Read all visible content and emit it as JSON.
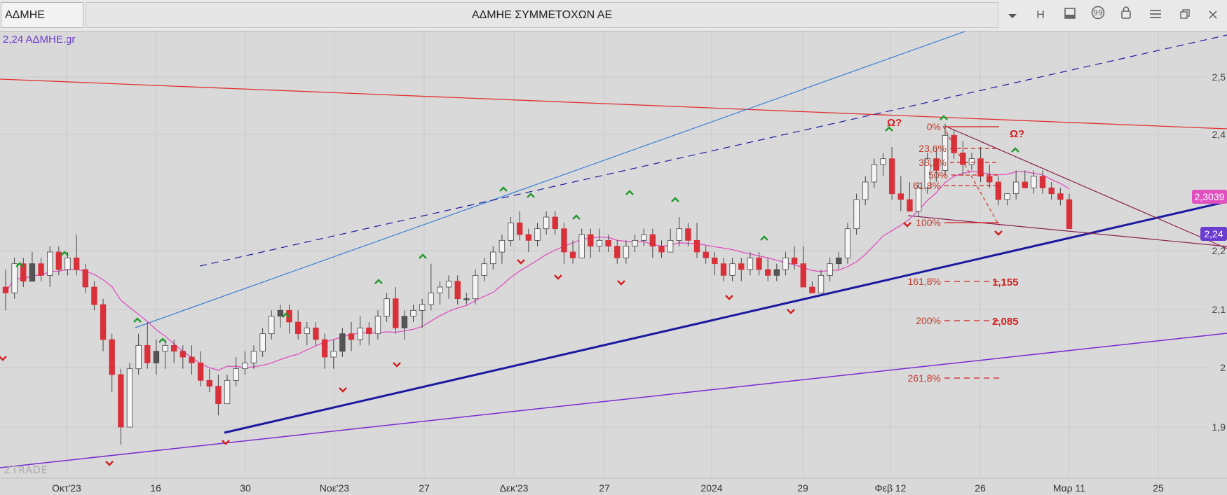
{
  "header": {
    "symbol": "ΑΔΜΗΕ",
    "company": "ΑΔΜΗΕ ΣΥΜΜΕΤΟΧΩΝ ΑΕ",
    "interval": "H"
  },
  "legend": "2,24 ΑΔΜΗΕ.gr",
  "watermark": "ZTRADE",
  "colors": {
    "up": "#f5f5f5",
    "up_dark": "#555555",
    "down": "#d9313a",
    "ma": "#e050c0",
    "trend_blue": "#1a1aa0",
    "line_light_blue": "#3a7fd5",
    "line_red": "#e03030",
    "line_purple": "#7a2ad0",
    "fib": "#d21f1f"
  },
  "chart_data": {
    "type": "candlestick",
    "y_range": [
      1.86,
      2.58
    ],
    "price_labels": [
      "2,5",
      "2,4",
      "2,2",
      "2,1",
      "2",
      "1,9"
    ],
    "x_labels": [
      "Οκτ'23",
      "16",
      "30",
      "Νοε'23",
      "27",
      "Δεκ'23",
      "27",
      "2024",
      "29",
      "Φεβ 12",
      "26",
      "Μαρ 11",
      "25"
    ],
    "current_price": "2,24",
    "ma_value": "2,3039",
    "fib_levels": [
      {
        "label": "0%"
      },
      {
        "label": "23,6%"
      },
      {
        "label": "38,2%"
      },
      {
        "label": "50%"
      },
      {
        "label": "61,8%"
      },
      {
        "label": "100%"
      },
      {
        "label": "161,8%",
        "value": "1,155"
      },
      {
        "label": "200%",
        "value": "2,085"
      },
      {
        "label": "261,8%"
      }
    ],
    "annotations": [
      "Ω?",
      "Ω?"
    ],
    "candles": [
      [
        2.14,
        2.17,
        2.1,
        2.13
      ],
      [
        2.13,
        2.19,
        2.12,
        2.18
      ],
      [
        2.18,
        2.19,
        2.14,
        2.15
      ],
      [
        2.15,
        2.2,
        2.15,
        2.18
      ],
      [
        2.18,
        2.19,
        2.15,
        2.16
      ],
      [
        2.16,
        2.21,
        2.14,
        2.2
      ],
      [
        2.2,
        2.21,
        2.16,
        2.17
      ],
      [
        2.17,
        2.2,
        2.16,
        2.19
      ],
      [
        2.19,
        2.23,
        2.16,
        2.17
      ],
      [
        2.17,
        2.18,
        2.13,
        2.14
      ],
      [
        2.14,
        2.15,
        2.1,
        2.11
      ],
      [
        2.11,
        2.12,
        2.03,
        2.05
      ],
      [
        2.05,
        2.06,
        1.96,
        1.99
      ],
      [
        1.99,
        2.0,
        1.87,
        1.9
      ],
      [
        1.9,
        2.01,
        1.9,
        2.0
      ],
      [
        2.0,
        2.06,
        1.99,
        2.04
      ],
      [
        2.04,
        2.08,
        2.0,
        2.01
      ],
      [
        2.01,
        2.05,
        1.99,
        2.03
      ],
      [
        2.03,
        2.05,
        2.0,
        2.04
      ],
      [
        2.04,
        2.05,
        2.01,
        2.03
      ],
      [
        2.03,
        2.04,
        2.0,
        2.02
      ],
      [
        2.02,
        2.04,
        1.99,
        2.01
      ],
      [
        2.01,
        2.03,
        1.97,
        1.98
      ],
      [
        1.98,
        2.0,
        1.96,
        1.97
      ],
      [
        1.97,
        1.99,
        1.92,
        1.94
      ],
      [
        1.94,
        1.99,
        1.94,
        1.98
      ],
      [
        1.98,
        2.02,
        1.97,
        2.0
      ],
      [
        2.0,
        2.03,
        1.99,
        2.01
      ],
      [
        2.01,
        2.04,
        2.0,
        2.03
      ],
      [
        2.03,
        2.07,
        2.02,
        2.06
      ],
      [
        2.06,
        2.1,
        2.05,
        2.09
      ],
      [
        2.09,
        2.11,
        2.07,
        2.1
      ],
      [
        2.1,
        2.11,
        2.06,
        2.08
      ],
      [
        2.08,
        2.1,
        2.05,
        2.06
      ],
      [
        2.06,
        2.08,
        2.04,
        2.07
      ],
      [
        2.07,
        2.08,
        2.04,
        2.05
      ],
      [
        2.05,
        2.06,
        2.0,
        2.02
      ],
      [
        2.02,
        2.05,
        2.0,
        2.03
      ],
      [
        2.03,
        2.07,
        2.02,
        2.06
      ],
      [
        2.06,
        2.08,
        2.03,
        2.05
      ],
      [
        2.05,
        2.09,
        2.04,
        2.07
      ],
      [
        2.07,
        2.08,
        2.04,
        2.06
      ],
      [
        2.06,
        2.1,
        2.05,
        2.09
      ],
      [
        2.09,
        2.13,
        2.08,
        2.12
      ],
      [
        2.12,
        2.14,
        2.06,
        2.07
      ],
      [
        2.07,
        2.1,
        2.05,
        2.09
      ],
      [
        2.09,
        2.11,
        2.08,
        2.1
      ],
      [
        2.1,
        2.12,
        2.07,
        2.11
      ],
      [
        2.11,
        2.18,
        2.1,
        2.13
      ],
      [
        2.13,
        2.15,
        2.11,
        2.14
      ],
      [
        2.14,
        2.16,
        2.12,
        2.15
      ],
      [
        2.15,
        2.16,
        2.11,
        2.12
      ],
      [
        2.12,
        2.13,
        2.11,
        2.12
      ],
      [
        2.12,
        2.17,
        2.11,
        2.16
      ],
      [
        2.16,
        2.19,
        2.15,
        2.18
      ],
      [
        2.18,
        2.21,
        2.17,
        2.2
      ],
      [
        2.2,
        2.23,
        2.18,
        2.22
      ],
      [
        2.22,
        2.26,
        2.21,
        2.25
      ],
      [
        2.25,
        2.27,
        2.22,
        2.23
      ],
      [
        2.23,
        2.24,
        2.2,
        2.22
      ],
      [
        2.22,
        2.25,
        2.21,
        2.24
      ],
      [
        2.24,
        2.27,
        2.23,
        2.26
      ],
      [
        2.26,
        2.27,
        2.23,
        2.24
      ],
      [
        2.24,
        2.25,
        2.18,
        2.2
      ],
      [
        2.2,
        2.22,
        2.18,
        2.19
      ],
      [
        2.19,
        2.24,
        2.19,
        2.23
      ],
      [
        2.23,
        2.24,
        2.19,
        2.21
      ],
      [
        2.21,
        2.24,
        2.2,
        2.22
      ],
      [
        2.22,
        2.23,
        2.2,
        2.21
      ],
      [
        2.21,
        2.22,
        2.18,
        2.19
      ],
      [
        2.19,
        2.22,
        2.18,
        2.21
      ],
      [
        2.21,
        2.23,
        2.2,
        2.22
      ],
      [
        2.22,
        2.24,
        2.21,
        2.23
      ],
      [
        2.23,
        2.24,
        2.19,
        2.21
      ],
      [
        2.21,
        2.22,
        2.19,
        2.2
      ],
      [
        2.2,
        2.24,
        2.2,
        2.22
      ],
      [
        2.22,
        2.26,
        2.21,
        2.24
      ],
      [
        2.24,
        2.25,
        2.21,
        2.22
      ],
      [
        2.22,
        2.25,
        2.19,
        2.2
      ],
      [
        2.2,
        2.21,
        2.18,
        2.19
      ],
      [
        2.19,
        2.2,
        2.16,
        2.18
      ],
      [
        2.18,
        2.19,
        2.15,
        2.16
      ],
      [
        2.16,
        2.19,
        2.15,
        2.18
      ],
      [
        2.18,
        2.19,
        2.15,
        2.17
      ],
      [
        2.17,
        2.2,
        2.16,
        2.19
      ],
      [
        2.19,
        2.2,
        2.16,
        2.17
      ],
      [
        2.17,
        2.19,
        2.15,
        2.16
      ],
      [
        2.16,
        2.18,
        2.15,
        2.17
      ],
      [
        2.17,
        2.2,
        2.16,
        2.19
      ],
      [
        2.19,
        2.21,
        2.17,
        2.18
      ],
      [
        2.18,
        2.21,
        2.14,
        2.14
      ],
      [
        2.14,
        2.15,
        2.13,
        2.13
      ],
      [
        2.13,
        2.17,
        2.13,
        2.16
      ],
      [
        2.16,
        2.19,
        2.15,
        2.18
      ],
      [
        2.18,
        2.2,
        2.17,
        2.19
      ],
      [
        2.19,
        2.25,
        2.18,
        2.24
      ],
      [
        2.24,
        2.3,
        2.23,
        2.29
      ],
      [
        2.29,
        2.33,
        2.28,
        2.32
      ],
      [
        2.32,
        2.36,
        2.31,
        2.35
      ],
      [
        2.35,
        2.37,
        2.33,
        2.36
      ],
      [
        2.36,
        2.38,
        2.29,
        2.3
      ],
      [
        2.3,
        2.33,
        2.27,
        2.29
      ],
      [
        2.29,
        2.32,
        2.27,
        2.27
      ],
      [
        2.27,
        2.32,
        2.26,
        2.31
      ],
      [
        2.31,
        2.37,
        2.3,
        2.36
      ],
      [
        2.36,
        2.38,
        2.32,
        2.34
      ],
      [
        2.34,
        2.42,
        2.33,
        2.4
      ],
      [
        2.4,
        2.41,
        2.36,
        2.37
      ],
      [
        2.37,
        2.39,
        2.33,
        2.35
      ],
      [
        2.35,
        2.37,
        2.34,
        2.36
      ],
      [
        2.36,
        2.38,
        2.32,
        2.33
      ],
      [
        2.33,
        2.35,
        2.31,
        2.32
      ],
      [
        2.32,
        2.33,
        2.28,
        2.29
      ],
      [
        2.29,
        2.3,
        2.28,
        2.3
      ],
      [
        2.3,
        2.34,
        2.29,
        2.32
      ],
      [
        2.32,
        2.34,
        2.31,
        2.31
      ],
      [
        2.31,
        2.34,
        2.3,
        2.33
      ],
      [
        2.33,
        2.34,
        2.3,
        2.31
      ],
      [
        2.31,
        2.32,
        2.29,
        2.3
      ],
      [
        2.3,
        2.31,
        2.28,
        2.29
      ],
      [
        2.29,
        2.3,
        2.24,
        2.24
      ]
    ]
  }
}
